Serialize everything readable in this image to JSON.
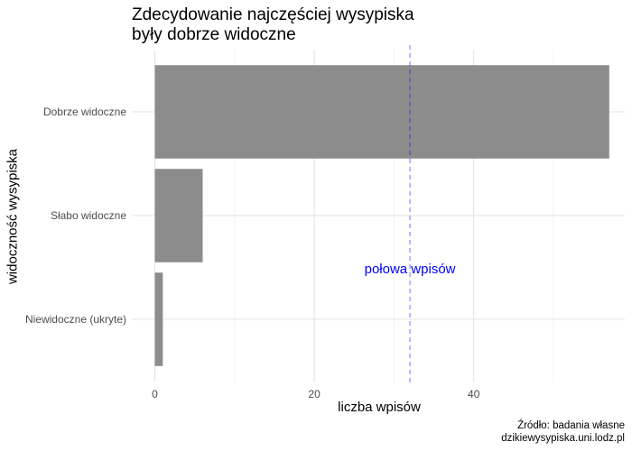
{
  "chart_data": {
    "type": "bar",
    "orientation": "horizontal",
    "title": "Zdecydowanie najczęściej wysypiska\nbyły dobrze widoczne",
    "title_lines": [
      "Zdecydowanie najczęściej wysypiska",
      "były dobrze widoczne"
    ],
    "xlabel": "liczba wpisów",
    "ylabel": "widoczność wysypiska",
    "categories": [
      "Dobrze widoczne",
      "Słabo widoczne",
      "Niewidoczne (ukryte)"
    ],
    "values": [
      57,
      6,
      1
    ],
    "xlim": [
      0,
      57
    ],
    "xticks": [
      0,
      20,
      40
    ],
    "grid": true,
    "bar_color": "#8c8c8c",
    "reference_line": {
      "value": 32,
      "label": "połowa wpisów",
      "color": "#0000ff",
      "style": "dashed"
    },
    "caption_lines": [
      "Źródło: badania własne",
      "dzikiewysypiska.uni.lodz.pl"
    ]
  }
}
